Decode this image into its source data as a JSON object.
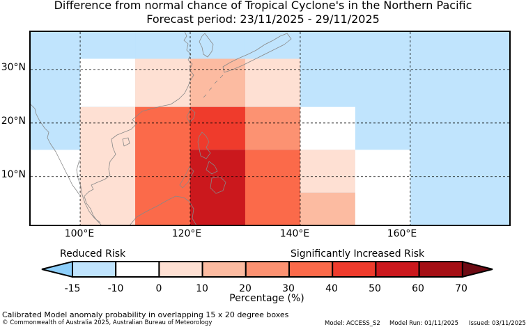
{
  "title": {
    "line1": "Difference from normal chance of Tropical Cyclone's in the Northern Pacific",
    "line2": "Forecast period: 23/11/2025 - 29/11/2025"
  },
  "map": {
    "lon_range": [
      91,
      178
    ],
    "lat_range": [
      1,
      37
    ],
    "lat_labels": [
      "30°N",
      "20°N",
      "10°N"
    ],
    "lat_values": [
      30,
      20,
      10
    ],
    "lon_labels": [
      "100°E",
      "120°E",
      "140°E",
      "160°E"
    ],
    "lon_values": [
      100,
      120,
      140,
      160
    ],
    "ocean_color": "#8dcffb",
    "land_outline_color": "#888888",
    "cells": [
      {
        "lon": [
          91,
          100
        ],
        "lat": [
          15,
          37
        ],
        "value": -15
      },
      {
        "lon": [
          91,
          100
        ],
        "lat": [
          1,
          15
        ],
        "value": -10
      },
      {
        "lon": [
          100,
          110
        ],
        "lat": [
          32,
          37
        ],
        "value": -15
      },
      {
        "lon": [
          110,
          120
        ],
        "lat": [
          32,
          37
        ],
        "value": -15
      },
      {
        "lon": [
          120,
          130
        ],
        "lat": [
          32,
          37
        ],
        "value": -15
      },
      {
        "lon": [
          130,
          140
        ],
        "lat": [
          32,
          37
        ],
        "value": -15
      },
      {
        "lon": [
          140,
          178
        ],
        "lat": [
          1,
          37
        ],
        "value": -15
      },
      {
        "lon": [
          100,
          110
        ],
        "lat": [
          23,
          32
        ],
        "value": -10
      },
      {
        "lon": [
          110,
          120
        ],
        "lat": [
          23,
          32
        ],
        "value": 0
      },
      {
        "lon": [
          120,
          130
        ],
        "lat": [
          23,
          32
        ],
        "value": 10
      },
      {
        "lon": [
          130,
          140
        ],
        "lat": [
          23,
          32
        ],
        "value": 0
      },
      {
        "lon": [
          100,
          110
        ],
        "lat": [
          1,
          23
        ],
        "value": 0
      },
      {
        "lon": [
          110,
          120
        ],
        "lat": [
          1,
          23
        ],
        "value": 30
      },
      {
        "lon": [
          120,
          130
        ],
        "lat": [
          15,
          23
        ],
        "value": 40
      },
      {
        "lon": [
          120,
          130
        ],
        "lat": [
          1,
          15
        ],
        "value": 50
      },
      {
        "lon": [
          130,
          140
        ],
        "lat": [
          15,
          23
        ],
        "value": 20
      },
      {
        "lon": [
          130,
          140
        ],
        "lat": [
          1,
          15
        ],
        "value": 30
      },
      {
        "lon": [
          140,
          150
        ],
        "lat": [
          15,
          23
        ],
        "value": -10
      },
      {
        "lon": [
          140,
          150
        ],
        "lat": [
          7,
          15
        ],
        "value": 0
      },
      {
        "lon": [
          140,
          150
        ],
        "lat": [
          1,
          7
        ],
        "value": 10
      },
      {
        "lon": [
          150,
          160
        ],
        "lat": [
          1,
          15
        ],
        "value": -10
      }
    ]
  },
  "colorbar": {
    "reduced_label": "Reduced Risk",
    "increased_label": "Significantly Increased Risk",
    "title": "Percentage (%)",
    "ticks": [
      "-15",
      "-10",
      "0",
      "10",
      "20",
      "30",
      "40",
      "50",
      "60",
      "70"
    ],
    "tick_values": [
      -15,
      -10,
      0,
      10,
      20,
      30,
      40,
      50,
      60,
      70
    ],
    "low_extend_color": "#8dcffb",
    "high_extend_color": "#6e0b14",
    "bins": [
      {
        "from": -15,
        "to": -10,
        "color": "#c0e4fd"
      },
      {
        "from": -10,
        "to": 0,
        "color": "#ffffff"
      },
      {
        "from": 0,
        "to": 10,
        "color": "#fee0d3"
      },
      {
        "from": 10,
        "to": 20,
        "color": "#fcbba1"
      },
      {
        "from": 20,
        "to": 30,
        "color": "#fc9272"
      },
      {
        "from": 30,
        "to": 40,
        "color": "#fb6a4a"
      },
      {
        "from": 40,
        "to": 50,
        "color": "#ef3b2c"
      },
      {
        "from": 50,
        "to": 60,
        "color": "#cb181d"
      },
      {
        "from": 60,
        "to": 70,
        "color": "#a50f15"
      }
    ]
  },
  "footer": {
    "note": "Calibrated Model anomaly probability in overlapping 15 x 20 degree boxes",
    "copyright": "© Commonwealth of Australia 2025, Australian Bureau of Meteorology",
    "model": "Model: ACCESS_S2",
    "model_run": "Model Run: 01/11/2025",
    "issued": "Issued: 03/11/2025"
  }
}
